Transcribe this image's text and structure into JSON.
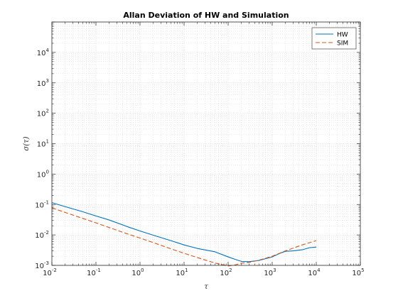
{
  "chart_data": {
    "type": "line",
    "title": "Allan Deviation of HW and Simulation",
    "xlabel": "τ",
    "ylabel": "σ(τ)",
    "x_scale": "log",
    "y_scale": "log",
    "xlim": [
      0.01,
      100000
    ],
    "ylim": [
      0.001,
      100000
    ],
    "x_ticks": [
      {
        "base": "10",
        "exp": "-2"
      },
      {
        "base": "10",
        "exp": "-1"
      },
      {
        "base": "10",
        "exp": "0"
      },
      {
        "base": "10",
        "exp": "1"
      },
      {
        "base": "10",
        "exp": "2"
      },
      {
        "base": "10",
        "exp": "3"
      },
      {
        "base": "10",
        "exp": "4"
      },
      {
        "base": "10",
        "exp": "5"
      }
    ],
    "y_ticks": [
      {
        "base": "10",
        "exp": "-3"
      },
      {
        "base": "10",
        "exp": "-2"
      },
      {
        "base": "10",
        "exp": "-1"
      },
      {
        "base": "10",
        "exp": "0"
      },
      {
        "base": "10",
        "exp": "1"
      },
      {
        "base": "10",
        "exp": "2"
      },
      {
        "base": "10",
        "exp": "3"
      },
      {
        "base": "10",
        "exp": "4"
      }
    ],
    "grid": true,
    "minor_grid": true,
    "legend": "top-right",
    "series": [
      {
        "name": "HW",
        "color": "#0072BD",
        "style": "solid",
        "x": [
          0.01,
          0.02,
          0.05,
          0.1,
          0.2,
          0.5,
          1,
          2,
          5,
          10,
          20,
          50,
          100,
          150,
          200,
          300,
          500,
          1000,
          1500,
          2000,
          3000,
          5000,
          7000,
          10000
        ],
        "y": [
          0.115,
          0.085,
          0.058,
          0.042,
          0.031,
          0.019,
          0.0135,
          0.0098,
          0.0065,
          0.0047,
          0.0036,
          0.0028,
          0.0019,
          0.00155,
          0.00135,
          0.00132,
          0.00145,
          0.0019,
          0.0025,
          0.0029,
          0.003,
          0.0033,
          0.0038,
          0.004
        ]
      },
      {
        "name": "SIM",
        "color": "#D95319",
        "style": "dashed",
        "x": [
          0.01,
          0.02,
          0.05,
          0.1,
          0.2,
          0.5,
          1,
          2,
          5,
          10,
          20,
          50,
          100,
          150,
          200,
          300,
          500,
          1000,
          2000,
          5000,
          10000
        ],
        "y": [
          0.078,
          0.055,
          0.035,
          0.025,
          0.0175,
          0.011,
          0.0079,
          0.0056,
          0.0035,
          0.0025,
          0.0018,
          0.0012,
          0.00095,
          0.00105,
          0.00118,
          0.00125,
          0.00148,
          0.002,
          0.003,
          0.0048,
          0.0065
        ]
      }
    ]
  }
}
